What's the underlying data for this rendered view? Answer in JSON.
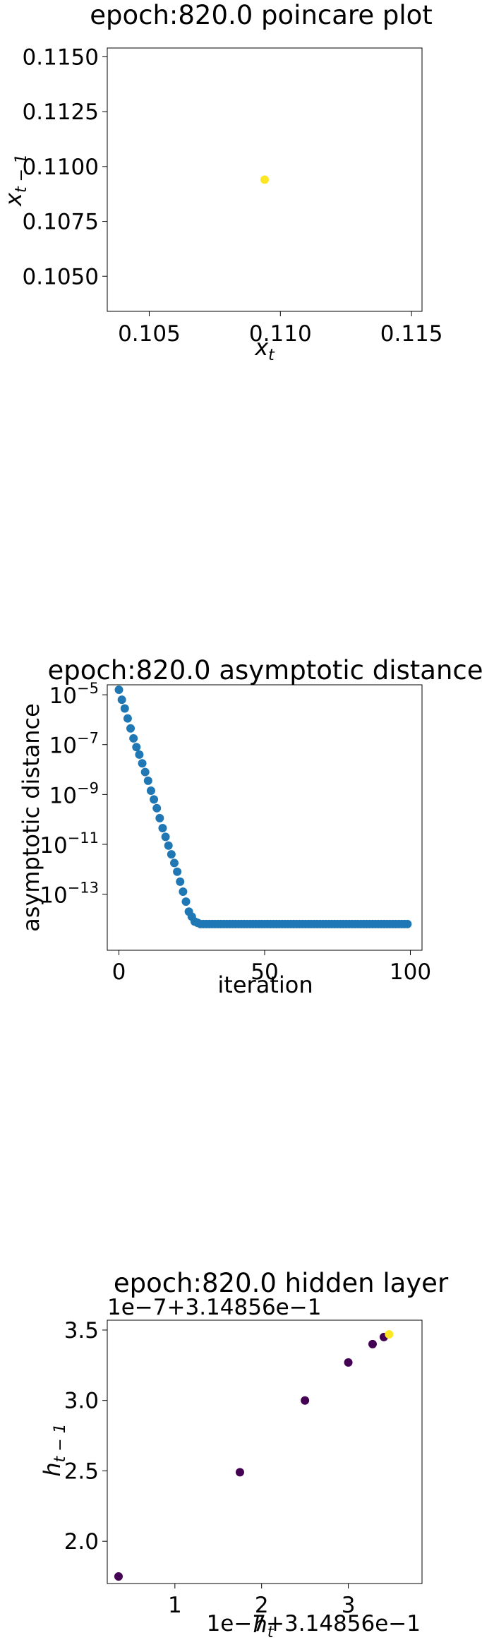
{
  "chart_data": [
    {
      "type": "scatter",
      "title": "epoch:820.0 poincare plot",
      "xlabel": "x_t",
      "ylabel": "x_{t-1}",
      "xlim": [
        0.1034,
        0.1154
      ],
      "ylim": [
        0.1034,
        0.1154
      ],
      "xticks": [
        0.105,
        0.11,
        0.115
      ],
      "xtick_labels": [
        "0.105",
        "0.110",
        "0.115"
      ],
      "yticks": [
        0.105,
        0.1075,
        0.11,
        0.1125,
        0.115
      ],
      "ytick_labels": [
        "0.1050",
        "0.1075",
        "0.1100",
        "0.1125",
        "0.1150"
      ],
      "grid": false,
      "points": [
        {
          "x": 0.1094,
          "y": 0.1094,
          "color": "#fde725"
        }
      ]
    },
    {
      "type": "scatter",
      "title": "epoch:820.0 asymptotic distance",
      "xlabel": "iteration",
      "ylabel": "asymptotic distance",
      "xlim": [
        -4,
        104
      ],
      "ylim_log10": [
        -15.25,
        -4.6
      ],
      "yscale": "log",
      "xticks": [
        0,
        50,
        100
      ],
      "xtick_labels": [
        "0",
        "50",
        "100"
      ],
      "yticks_log10": [
        -5,
        -7,
        -9,
        -11,
        -13
      ],
      "ytick_labels": [
        "10",
        "10",
        "10",
        "10",
        "10"
      ],
      "ytick_exponents": [
        "−5",
        "−7",
        "−9",
        "−11",
        "−13"
      ],
      "grid": false,
      "color": "#1f77b4",
      "x": [
        0,
        1,
        2,
        3,
        4,
        5,
        6,
        7,
        8,
        9,
        10,
        11,
        12,
        13,
        14,
        15,
        16,
        17,
        18,
        19,
        20,
        21,
        22,
        23,
        24,
        25,
        26,
        27,
        28,
        29,
        30,
        31,
        32,
        33,
        34,
        35,
        36,
        37,
        38,
        39,
        40,
        41,
        42,
        43,
        44,
        45,
        46,
        47,
        48,
        49,
        50,
        51,
        52,
        53,
        54,
        55,
        56,
        57,
        58,
        59,
        60,
        61,
        62,
        63,
        64,
        65,
        66,
        67,
        68,
        69,
        70,
        71,
        72,
        73,
        74,
        75,
        76,
        77,
        78,
        79,
        80,
        81,
        82,
        83,
        84,
        85,
        86,
        87,
        88,
        89,
        90,
        91,
        92,
        93,
        94,
        95,
        96,
        97,
        98,
        99
      ],
      "y_log10": [
        -4.8,
        -5.2,
        -5.55,
        -5.95,
        -6.35,
        -6.75,
        -7.1,
        -7.4,
        -7.75,
        -8.1,
        -8.45,
        -8.85,
        -9.2,
        -9.55,
        -9.95,
        -10.35,
        -10.7,
        -11.05,
        -11.4,
        -11.75,
        -12.1,
        -12.5,
        -12.9,
        -13.3,
        -13.7,
        -13.9,
        -14.1,
        -14.15,
        -14.2,
        -14.2,
        -14.2,
        -14.2,
        -14.2,
        -14.2,
        -14.2,
        -14.2,
        -14.2,
        -14.2,
        -14.2,
        -14.2,
        -14.2,
        -14.2,
        -14.2,
        -14.2,
        -14.2,
        -14.2,
        -14.2,
        -14.2,
        -14.2,
        -14.2,
        -14.2,
        -14.2,
        -14.2,
        -14.2,
        -14.2,
        -14.2,
        -14.2,
        -14.2,
        -14.2,
        -14.2,
        -14.2,
        -14.2,
        -14.2,
        -14.2,
        -14.2,
        -14.2,
        -14.2,
        -14.2,
        -14.2,
        -14.2,
        -14.2,
        -14.2,
        -14.2,
        -14.2,
        -14.2,
        -14.2,
        -14.2,
        -14.2,
        -14.2,
        -14.2,
        -14.2,
        -14.2,
        -14.2,
        -14.2,
        -14.2,
        -14.2,
        -14.2,
        -14.2,
        -14.2,
        -14.2,
        -14.2,
        -14.2,
        -14.2,
        -14.2,
        -14.2,
        -14.2,
        -14.2,
        -14.2,
        -14.2,
        -14.2
      ]
    },
    {
      "type": "scatter",
      "title": "epoch:820.0 hidden layer",
      "xlabel": "h_t",
      "ylabel": "h_{t-1}",
      "x_offset_label": "1e−7+3.14856e−1",
      "y_offset_label": "1e−7+3.14856e−1",
      "xlim": [
        0.22,
        3.85
      ],
      "ylim": [
        1.7,
        3.57
      ],
      "xticks": [
        1,
        2,
        3
      ],
      "xtick_labels": [
        "1",
        "2",
        "3"
      ],
      "yticks": [
        2.0,
        2.5,
        3.0,
        3.5
      ],
      "ytick_labels": [
        "2.0",
        "2.5",
        "3.0",
        "3.5"
      ],
      "grid": false,
      "points": [
        {
          "x": 0.35,
          "y": 1.75,
          "color": "#440154"
        },
        {
          "x": 1.75,
          "y": 2.49,
          "color": "#440154"
        },
        {
          "x": 2.5,
          "y": 3.0,
          "color": "#440154"
        },
        {
          "x": 3.0,
          "y": 3.27,
          "color": "#440154"
        },
        {
          "x": 3.28,
          "y": 3.4,
          "color": "#440154"
        },
        {
          "x": 3.41,
          "y": 3.45,
          "color": "#440154"
        },
        {
          "x": 3.47,
          "y": 3.47,
          "color": "#fde725"
        }
      ]
    }
  ]
}
